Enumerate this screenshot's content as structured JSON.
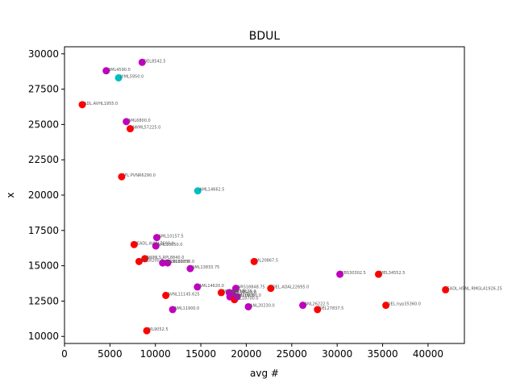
{
  "chart_data": {
    "type": "scatter",
    "title": "BDUL",
    "xlabel": "avg #",
    "ylabel": "x",
    "xlim": [
      0,
      44000
    ],
    "ylim": [
      9500,
      30500
    ],
    "xticks": [
      0,
      5000,
      10000,
      15000,
      20000,
      25000,
      30000,
      35000,
      40000
    ],
    "yticks": [
      10000,
      12500,
      15000,
      17500,
      20000,
      22500,
      25000,
      27500,
      30000
    ],
    "grid": false,
    "colors": {
      "red": "#ff0000",
      "magenta": "#bf00bf",
      "cyan": "#00bfbf"
    },
    "points": [
      {
        "x": 8542.5,
        "y": 29400,
        "color": "magenta",
        "label": "DEL8542.5"
      },
      {
        "x": 4590,
        "y": 28800,
        "color": "magenta",
        "label": "AML4590.0"
      },
      {
        "x": 5950,
        "y": 28300,
        "color": "cyan",
        "label": "JYML5950.0"
      },
      {
        "x": 1955,
        "y": 26400,
        "color": "red",
        "label": "ADL.AVHL1955.0"
      },
      {
        "x": 6800,
        "y": 25200,
        "color": "magenta",
        "label": "AML6800.0"
      },
      {
        "x": 7225,
        "y": 24700,
        "color": "red",
        "label": "AWML57225.0"
      },
      {
        "x": 6290,
        "y": 21300,
        "color": "red",
        "label": "JPL.PVNR6290.0"
      },
      {
        "x": 14662.5,
        "y": 20300,
        "color": "cyan",
        "label": "AML14662.5"
      },
      {
        "x": 10157.5,
        "y": 17000,
        "color": "magenta",
        "label": "AML10157.5"
      },
      {
        "x": 7660,
        "y": 16500,
        "color": "red",
        "label": "JEADL.AVML7660.0"
      },
      {
        "x": 10050,
        "y": 16400,
        "color": "magenta",
        "label": "AML10050.0"
      },
      {
        "x": 8840,
        "y": 15500,
        "color": "red",
        "label": "AWML5.RPL8840.0"
      },
      {
        "x": 8200,
        "y": 15300,
        "color": "red",
        "label": "OCE8200.0"
      },
      {
        "x": 10800,
        "y": 15200,
        "color": "magenta",
        "label": "AML10800.0"
      },
      {
        "x": 11350,
        "y": 15200,
        "color": "magenta",
        "label": "AML11350.0"
      },
      {
        "x": 20867.5,
        "y": 15300,
        "color": "red",
        "label": "ML20867.5"
      },
      {
        "x": 13833.75,
        "y": 14800,
        "color": "magenta",
        "label": "AML13833.75"
      },
      {
        "x": 30302.5,
        "y": 14400,
        "color": "magenta",
        "label": "YBS30302.5"
      },
      {
        "x": 34552.5,
        "y": 14400,
        "color": "red",
        "label": "MEL34552.5"
      },
      {
        "x": 14620,
        "y": 13500,
        "color": "magenta",
        "label": "AML14620.0"
      },
      {
        "x": 22695,
        "y": 13400,
        "color": "red",
        "label": "DEL.ADAL22695.0"
      },
      {
        "x": 41926.25,
        "y": 13300,
        "color": "red",
        "label": "EADL.H5NL.RMGL41926.25"
      },
      {
        "x": 18848.75,
        "y": 13400,
        "color": "magenta",
        "label": "NRS18848.75"
      },
      {
        "x": 17250,
        "y": 13100,
        "color": "red",
        "label": "ML17250.0"
      },
      {
        "x": 18125,
        "y": 13100,
        "color": "magenta",
        "label": "AML18125.0"
      },
      {
        "x": 18500,
        "y": 13000,
        "color": "magenta",
        "label": "ML18500.0"
      },
      {
        "x": 18200,
        "y": 12800,
        "color": "magenta",
        "label": "ML18200.0"
      },
      {
        "x": 18700,
        "y": 12600,
        "color": "red",
        "label": "ML18700.0"
      },
      {
        "x": 19000,
        "y": 12800,
        "color": "magenta",
        "label": "ML19000.0"
      },
      {
        "x": 11145.625,
        "y": 12900,
        "color": "red",
        "label": "AVNL11145.625"
      },
      {
        "x": 26222.5,
        "y": 12200,
        "color": "magenta",
        "label": "ANL26222.5"
      },
      {
        "x": 35360,
        "y": 12200,
        "color": "red",
        "label": "DEL.hyp35360.0"
      },
      {
        "x": 20230,
        "y": 12100,
        "color": "magenta",
        "label": "ANL20230.0"
      },
      {
        "x": 27837.5,
        "y": 11900,
        "color": "red",
        "label": "DEL27837.5"
      },
      {
        "x": 11900,
        "y": 11900,
        "color": "magenta",
        "label": "AML11900.0"
      },
      {
        "x": 9052.5,
        "y": 10400,
        "color": "red",
        "label": "ML9052.5"
      }
    ]
  }
}
